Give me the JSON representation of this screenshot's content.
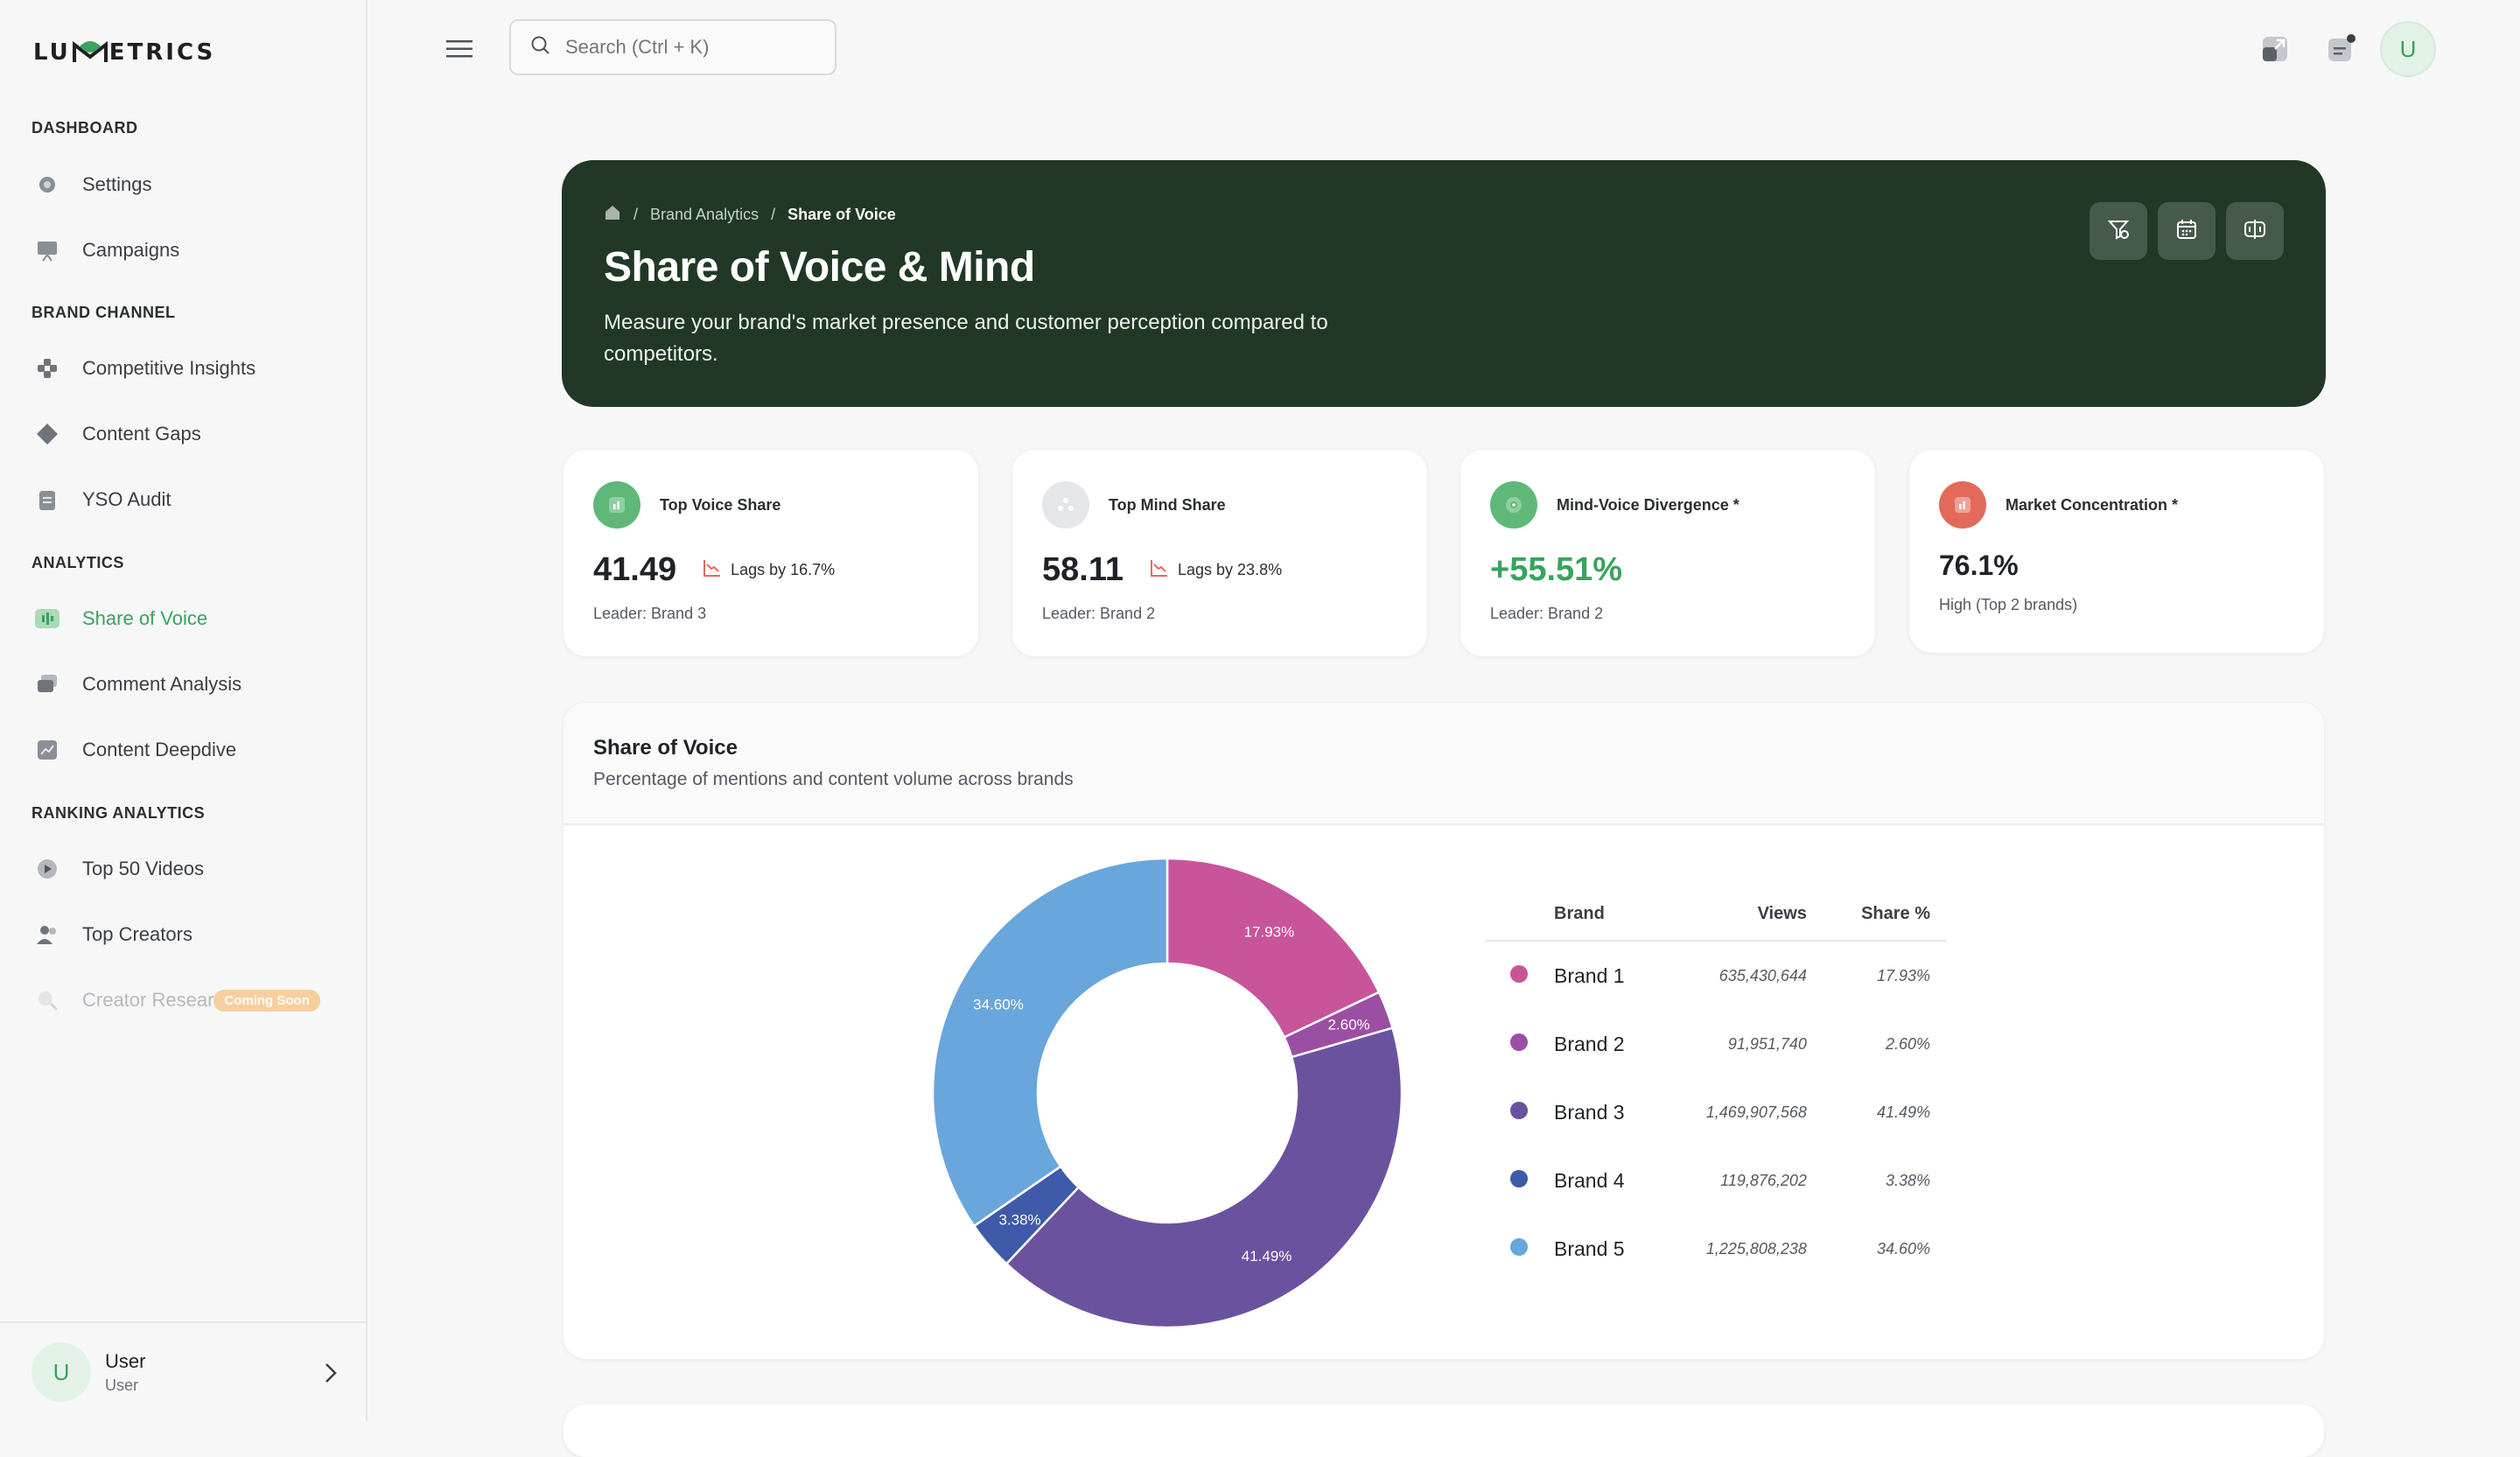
{
  "brand": {
    "logo_text_left": "LU",
    "logo_text_right": "ETRICS"
  },
  "sidebar": {
    "sections": [
      {
        "title": "DASHBOARD",
        "items": [
          {
            "label": "Settings"
          },
          {
            "label": "Campaigns"
          }
        ]
      },
      {
        "title": "BRAND CHANNEL",
        "items": [
          {
            "label": "Competitive Insights"
          },
          {
            "label": "Content Gaps"
          },
          {
            "label": "YSO Audit"
          }
        ]
      },
      {
        "title": "ANALYTICS",
        "items": [
          {
            "label": "Share of Voice"
          },
          {
            "label": "Comment Analysis"
          },
          {
            "label": "Content Deepdive"
          }
        ]
      },
      {
        "title": "RANKING ANALYTICS",
        "items": [
          {
            "label": "Top 50 Videos"
          },
          {
            "label": "Top Creators"
          },
          {
            "label": "Creator Resear",
            "badge": "Coming Soon"
          }
        ]
      }
    ],
    "user": {
      "initial": "U",
      "name": "User",
      "role": "User"
    }
  },
  "topbar": {
    "search_placeholder": "Search (Ctrl + K)",
    "avatar_initial": "U"
  },
  "hero": {
    "breadcrumb": [
      "Brand Analytics",
      "Share of Voice"
    ],
    "title": "Share of Voice & Mind",
    "subtitle": "Measure your brand's market presence and customer perception compared to competitors."
  },
  "cards": [
    {
      "title": "Top Voice Share",
      "value": "41.49",
      "lag": "Lags by 16.7%",
      "sub": "Leader: Brand 3",
      "icon_color": "#5fb878"
    },
    {
      "title": "Top Mind Share",
      "value": "58.11",
      "lag": "Lags by 23.8%",
      "sub": "Leader: Brand 2",
      "icon_color": "#e4e6e9"
    },
    {
      "title": "Mind-Voice Divergence *",
      "value": "+55.51%",
      "sub": "Leader: Brand 2",
      "icon_color": "#5fb878"
    },
    {
      "title": "Market Concentration *",
      "value": "76.1%",
      "sub": "High (Top 2 brands)",
      "icon_color": "#e36a5b"
    }
  ],
  "panel": {
    "title": "Share of Voice",
    "subtitle": "Percentage of mentions and content volume across brands"
  },
  "table": {
    "headers": [
      "Brand",
      "Views",
      "Share %"
    ]
  },
  "chart_data": {
    "type": "pie",
    "categories": [
      "Brand 1",
      "Brand 2",
      "Brand 3",
      "Brand 4",
      "Brand 5"
    ],
    "views": [
      "635,430,644",
      "91,951,740",
      "1,469,907,568",
      "119,876,202",
      "1,225,808,238"
    ],
    "values": [
      17.93,
      2.6,
      41.49,
      3.38,
      34.6
    ],
    "labels": [
      "17.93%",
      "2.60%",
      "41.49%",
      "3.38%",
      "34.60%"
    ],
    "colors": [
      "#c8559a",
      "#9b4fa3",
      "#6b529f",
      "#3f5aa8",
      "#69a6dc"
    ]
  }
}
